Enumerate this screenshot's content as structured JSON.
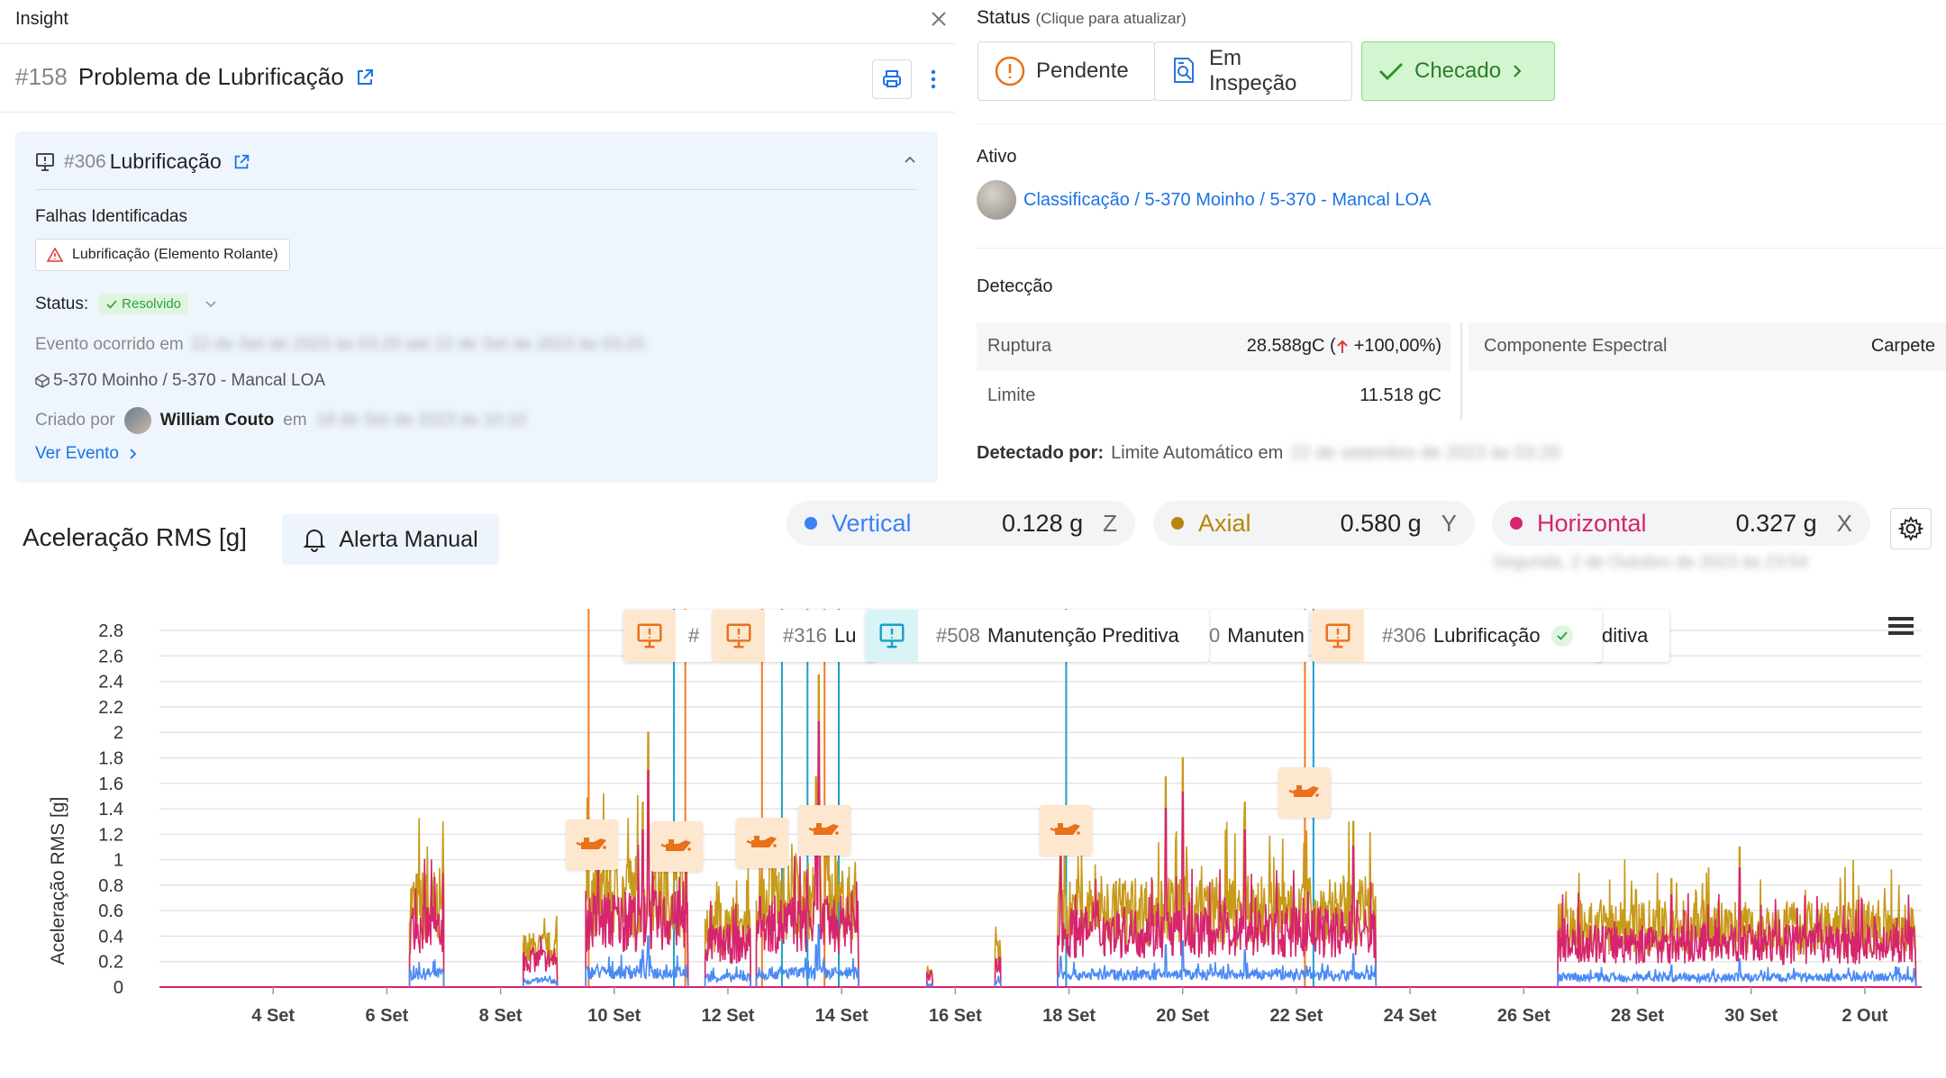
{
  "insight": {
    "header_label": "Insight",
    "number": "#158",
    "title": "Problema de Lubrificação",
    "event_card": {
      "number": "#306",
      "title": "Lubrificação",
      "failures_heading": "Falhas Identificadas",
      "failure_tag": "Lubrificação (Elemento Rolante)",
      "status_label": "Status:",
      "status_value": "Resolvido",
      "occurred_label": "Evento ocorrido em",
      "occurred_value": "22 de Set de 2023 às 03:20 até 22 de Set de 2023 às 03:20",
      "asset_path": "5-370 Moinho / 5-370 - Mancal LOA",
      "created_by_label": "Criado por",
      "created_by_name": "William Couto",
      "created_on_label": "em",
      "created_on_value": "18 de Set de 2023 às 10:10",
      "view_event": "Ver Evento"
    }
  },
  "status_panel": {
    "title": "Status",
    "hint": "(Clique para atualizar)",
    "buttons": [
      {
        "label": "Pendente"
      },
      {
        "label": "Em Inspeção"
      },
      {
        "label": "Checado"
      }
    ]
  },
  "asset": {
    "label": "Ativo",
    "path": "Classificação / 5-370 Moinho / 5-370 - Mancal LOA"
  },
  "detection": {
    "label": "Detecção",
    "rupture_label": "Ruptura",
    "rupture_value": "28.588gC (",
    "rupture_change": "+100,00%)",
    "limit_label": "Limite",
    "limit_value": "11.518 gC",
    "component_label": "Componente Espectral",
    "component_value": "Carpete",
    "detected_by_label": "Detectado por:",
    "detected_by_value": "Limite Automático em",
    "detected_at": "22 de setembro de 2023 às 03:20"
  },
  "chart_header": {
    "title": "Aceleração RMS [g]",
    "manual_alert": "Alerta Manual",
    "legend": [
      {
        "name": "Vertical",
        "value": "0.128 g",
        "axis": "Z",
        "color": "#3b82f6"
      },
      {
        "name": "Axial",
        "value": "0.580 g",
        "axis": "Y",
        "color": "#b8860b"
      },
      {
        "name": "Horizontal",
        "value": "0.327 g",
        "axis": "X",
        "color": "#d6246e"
      }
    ],
    "timestamp": "Segunda, 2 de Outubro de 2023 às 23:54"
  },
  "annotations": [
    {
      "number": "#",
      "label": ""
    },
    {
      "number": "#316",
      "label": "Lu"
    },
    {
      "number": "#508",
      "label": "Manutenção Preditiva"
    },
    {
      "number": "0",
      "label": "Manuten"
    },
    {
      "number": "#306",
      "label": "Lubrificação"
    },
    {
      "number": "",
      "label": "ditiva"
    }
  ],
  "chart_data": {
    "type": "line",
    "ylabel": "Aceleração RMS [g]",
    "yticks": [
      0,
      0.2,
      0.4,
      0.6,
      0.8,
      1,
      1.2,
      1.4,
      1.6,
      1.8,
      2,
      2.2,
      2.4,
      2.6,
      2.8
    ],
    "ylim": [
      0,
      2.9
    ],
    "xticks": [
      "4 Set",
      "6 Set",
      "8 Set",
      "10 Set",
      "12 Set",
      "14 Set",
      "16 Set",
      "18 Set",
      "20 Set",
      "22 Set",
      "24 Set",
      "26 Set",
      "28 Set",
      "30 Set",
      "2 Out"
    ],
    "xrange_days": [
      2.0,
      33.0
    ],
    "tick_days": [
      4,
      6,
      8,
      10,
      12,
      14,
      16,
      18,
      20,
      22,
      24,
      26,
      28,
      30,
      32
    ],
    "series": [
      {
        "name": "Axial",
        "color": "#c89a1a"
      },
      {
        "name": "Horizontal",
        "color": "#d6246e"
      },
      {
        "name": "Vertical",
        "color": "#4a8af4"
      }
    ],
    "active_segments": [
      [
        6.4,
        7.0
      ],
      [
        8.4,
        9.0
      ],
      [
        9.5,
        11.3
      ],
      [
        11.6,
        12.4
      ],
      [
        12.5,
        14.3
      ],
      [
        15.5,
        15.6
      ],
      [
        16.7,
        16.8
      ],
      [
        17.8,
        23.4
      ],
      [
        26.6,
        32.9
      ]
    ],
    "segment_levels": [
      0.75,
      0.35,
      0.85,
      0.55,
      0.8,
      0.15,
      0.3,
      0.7,
      0.55
    ],
    "spikes": [
      {
        "day": 7.3,
        "value": 0.9
      },
      {
        "day": 10.5,
        "value": 1.45
      },
      {
        "day": 10.6,
        "value": 2.0
      },
      {
        "day": 13.6,
        "value": 2.45
      },
      {
        "day": 13.55,
        "value": 1.65
      },
      {
        "day": 17.85,
        "value": 1.2
      },
      {
        "day": 20.0,
        "value": 1.8
      },
      {
        "day": 19.7,
        "value": 1.65
      },
      {
        "day": 21.1,
        "value": 1.45
      },
      {
        "day": 23.0,
        "value": 1.3
      },
      {
        "day": 28.6,
        "value": 0.85
      },
      {
        "day": 29.8,
        "value": 1.1
      }
    ],
    "event_lines": [
      {
        "day": 9.55,
        "color": "#f47a20"
      },
      {
        "day": 11.05,
        "color": "#1aa0c8"
      },
      {
        "day": 11.25,
        "color": "#f47a20"
      },
      {
        "day": 12.6,
        "color": "#f47a20"
      },
      {
        "day": 12.95,
        "color": "#1aa0c8"
      },
      {
        "day": 13.4,
        "color": "#1aa0c8"
      },
      {
        "day": 13.7,
        "color": "#f47a20"
      },
      {
        "day": 13.95,
        "color": "#1aa0c8"
      },
      {
        "day": 17.95,
        "color": "#1aa0c8"
      },
      {
        "day": 22.15,
        "color": "#f47a20"
      },
      {
        "day": 22.3,
        "color": "#1aa0c8"
      }
    ],
    "markers": [
      {
        "day": 9.6,
        "value": 1.12
      },
      {
        "day": 11.1,
        "value": 1.1
      },
      {
        "day": 12.6,
        "value": 1.13
      },
      {
        "day": 13.7,
        "value": 1.23
      },
      {
        "day": 17.95,
        "value": 1.23
      },
      {
        "day": 22.15,
        "value": 1.53
      }
    ]
  }
}
